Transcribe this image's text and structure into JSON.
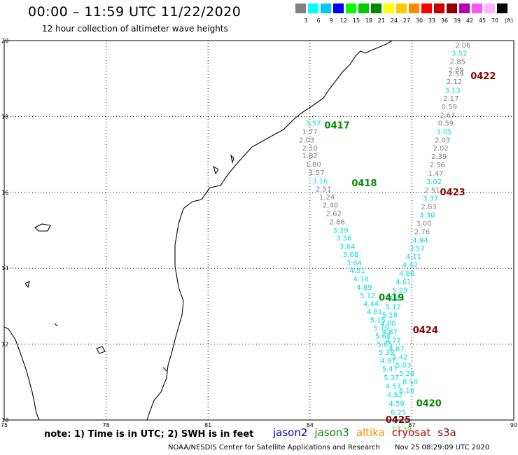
{
  "header": {
    "title": "00:00 – 11:59 UTC 11/22/2020",
    "subtitle": "12 hour collection of altimeter wave heights"
  },
  "color_scale": {
    "unit_label": "(ft)",
    "bins": [
      {
        "label": "3",
        "color": "#808080"
      },
      {
        "label": "6",
        "color": "#00ffff"
      },
      {
        "label": "9",
        "color": "#00c8ff"
      },
      {
        "label": "12",
        "color": "#0000ff"
      },
      {
        "label": "15",
        "color": "#00ff00"
      },
      {
        "label": "18",
        "color": "#00cd00"
      },
      {
        "label": "21",
        "color": "#008c00"
      },
      {
        "label": "24",
        "color": "#ffff00"
      },
      {
        "label": "27",
        "color": "#ffc800"
      },
      {
        "label": "30",
        "color": "#ff8c00"
      },
      {
        "label": "33",
        "color": "#ff0000"
      },
      {
        "label": "36",
        "color": "#cd0000"
      },
      {
        "label": "39",
        "color": "#8b0000"
      },
      {
        "label": "42",
        "color": "#b400b4"
      },
      {
        "label": "45",
        "color": "#ff55ff"
      },
      {
        "label": "70",
        "color": "#ffb4ff"
      },
      {
        "label": "",
        "color": "#000000"
      }
    ]
  },
  "map": {
    "lon_range": [
      75,
      90
    ],
    "lat_range": [
      10,
      20
    ],
    "lon_ticks": [
      "75",
      "78",
      "81",
      "84",
      "87",
      "90"
    ],
    "lat_ticks": [
      "10",
      "12",
      "14",
      "16",
      "18",
      "20"
    ],
    "grid": true
  },
  "tracks": [
    {
      "id": "jason3-left",
      "points": [
        {
          "lon": 84.1,
          "lat": 17.76,
          "value": "3.57",
          "color": "#00dddd"
        },
        {
          "lon": 84.0,
          "lat": 17.54,
          "value": "1.77",
          "color": "#808080"
        },
        {
          "lon": 83.9,
          "lat": 17.32,
          "value": "2.03",
          "color": "#808080"
        },
        {
          "lon": 84.0,
          "lat": 17.1,
          "value": "2.10",
          "color": "#808080"
        },
        {
          "lon": 84.0,
          "lat": 16.9,
          "value": "1.82",
          "color": "#808080"
        },
        {
          "lon": 84.1,
          "lat": 16.68,
          "value": "1.80",
          "color": "#808080"
        },
        {
          "lon": 84.2,
          "lat": 16.46,
          "value": "1.57",
          "color": "#808080"
        },
        {
          "lon": 84.3,
          "lat": 16.24,
          "value": "3.16",
          "color": "#00dddd"
        },
        {
          "lon": 84.4,
          "lat": 16.02,
          "value": "2.51",
          "color": "#808080"
        },
        {
          "lon": 84.5,
          "lat": 15.81,
          "value": "1.24",
          "color": "#808080"
        },
        {
          "lon": 84.6,
          "lat": 15.6,
          "value": "2.40",
          "color": "#808080"
        },
        {
          "lon": 84.7,
          "lat": 15.38,
          "value": "2.62",
          "color": "#808080"
        },
        {
          "lon": 84.8,
          "lat": 15.16,
          "value": "2.86",
          "color": "#808080"
        },
        {
          "lon": 84.9,
          "lat": 14.94,
          "value": "3.29",
          "color": "#00dddd"
        },
        {
          "lon": 85.0,
          "lat": 14.73,
          "value": "3.56",
          "color": "#00dddd"
        },
        {
          "lon": 85.1,
          "lat": 14.51,
          "value": "3.64",
          "color": "#00dddd"
        },
        {
          "lon": 85.2,
          "lat": 14.3,
          "value": "3.68",
          "color": "#00dddd"
        },
        {
          "lon": 85.3,
          "lat": 14.08,
          "value": "3.64",
          "color": "#00dddd"
        },
        {
          "lon": 85.4,
          "lat": 13.87,
          "value": "4.51",
          "color": "#00dddd"
        },
        {
          "lon": 85.5,
          "lat": 13.65,
          "value": "4.18",
          "color": "#00dddd"
        },
        {
          "lon": 85.6,
          "lat": 13.43,
          "value": "4.89",
          "color": "#00dddd"
        },
        {
          "lon": 85.7,
          "lat": 13.22,
          "value": "5.12",
          "color": "#00dddd"
        },
        {
          "lon": 85.8,
          "lat": 13.0,
          "value": "4.44",
          "color": "#00dddd"
        },
        {
          "lon": 85.9,
          "lat": 12.79,
          "value": "4.81",
          "color": "#00dddd"
        },
        {
          "lon": 86.0,
          "lat": 12.57,
          "value": "5.15",
          "color": "#00dddd"
        },
        {
          "lon": 86.1,
          "lat": 12.36,
          "value": "5.19",
          "color": "#00dddd"
        },
        {
          "lon": 86.15,
          "lat": 12.15,
          "value": "5.64",
          "color": "#00dddd"
        },
        {
          "lon": 86.2,
          "lat": 11.94,
          "value": "5.85",
          "color": "#00dddd"
        },
        {
          "lon": 86.25,
          "lat": 11.72,
          "value": "5.39",
          "color": "#00dddd"
        },
        {
          "lon": 86.3,
          "lat": 11.5,
          "value": "4.97",
          "color": "#00dddd"
        },
        {
          "lon": 86.35,
          "lat": 11.28,
          "value": "5.47",
          "color": "#00dddd"
        },
        {
          "lon": 86.4,
          "lat": 11.05,
          "value": "5.37",
          "color": "#00dddd"
        },
        {
          "lon": 86.45,
          "lat": 10.83,
          "value": "4.57",
          "color": "#00dddd"
        },
        {
          "lon": 86.5,
          "lat": 10.6,
          "value": "4.52",
          "color": "#00dddd"
        },
        {
          "lon": 86.55,
          "lat": 10.37,
          "value": "4.59",
          "color": "#00dddd"
        },
        {
          "lon": 86.6,
          "lat": 10.14,
          "value": "6.25",
          "color": "#00dddd"
        },
        {
          "lon": 86.65,
          "lat": 9.92,
          "value": "6.33",
          "color": "#00dddd"
        },
        {
          "lon": 86.7,
          "lat": 9.7,
          "value": "13.39",
          "color": "#55dd55"
        }
      ]
    },
    {
      "id": "right-track",
      "points": [
        {
          "lon": 88.5,
          "lat": 19.82,
          "value": "2.06",
          "color": "#808080"
        },
        {
          "lon": 88.4,
          "lat": 19.6,
          "value": "3.52",
          "color": "#00dddd"
        },
        {
          "lon": 88.35,
          "lat": 19.38,
          "value": "2.85",
          "color": "#808080"
        },
        {
          "lon": 88.3,
          "lat": 19.16,
          "value": "2.89",
          "color": "#808080"
        },
        {
          "lon": 88.3,
          "lat": 19.06,
          "value": "2.59",
          "color": "#808080"
        },
        {
          "lon": 88.25,
          "lat": 18.86,
          "value": "2.12",
          "color": "#808080"
        },
        {
          "lon": 88.2,
          "lat": 18.63,
          "value": "3.13",
          "color": "#00dddd"
        },
        {
          "lon": 88.15,
          "lat": 18.41,
          "value": "2.17",
          "color": "#808080"
        },
        {
          "lon": 88.1,
          "lat": 18.19,
          "value": "0.59",
          "color": "#808080"
        },
        {
          "lon": 88.05,
          "lat": 17.97,
          "value": "2.67",
          "color": "#808080"
        },
        {
          "lon": 88.0,
          "lat": 17.76,
          "value": "0.59",
          "color": "#808080"
        },
        {
          "lon": 87.95,
          "lat": 17.54,
          "value": "3.05",
          "color": "#00dddd"
        },
        {
          "lon": 87.9,
          "lat": 17.32,
          "value": "2.03",
          "color": "#808080"
        },
        {
          "lon": 87.85,
          "lat": 17.1,
          "value": "2.02",
          "color": "#808080"
        },
        {
          "lon": 87.8,
          "lat": 16.88,
          "value": "2.39",
          "color": "#808080"
        },
        {
          "lon": 87.75,
          "lat": 16.66,
          "value": "2.56",
          "color": "#808080"
        },
        {
          "lon": 87.7,
          "lat": 16.44,
          "value": "1.47",
          "color": "#808080"
        },
        {
          "lon": 87.65,
          "lat": 16.22,
          "value": "3.02",
          "color": "#00dddd"
        },
        {
          "lon": 87.6,
          "lat": 16.0,
          "value": "2.51",
          "color": "#808080"
        },
        {
          "lon": 87.55,
          "lat": 15.78,
          "value": "3.37",
          "color": "#00dddd"
        },
        {
          "lon": 87.5,
          "lat": 15.56,
          "value": "2.83",
          "color": "#808080"
        },
        {
          "lon": 87.45,
          "lat": 15.34,
          "value": "3.30",
          "color": "#00dddd"
        },
        {
          "lon": 87.35,
          "lat": 15.12,
          "value": "3.00",
          "color": "#808080"
        },
        {
          "lon": 87.3,
          "lat": 14.9,
          "value": "2.76",
          "color": "#808080"
        },
        {
          "lon": 87.25,
          "lat": 14.68,
          "value": "4.94",
          "color": "#00dddd"
        },
        {
          "lon": 87.15,
          "lat": 14.46,
          "value": "3.57",
          "color": "#00dddd"
        },
        {
          "lon": 87.05,
          "lat": 14.24,
          "value": "4.11",
          "color": "#00dddd"
        },
        {
          "lon": 86.95,
          "lat": 14.02,
          "value": "4.42",
          "color": "#00dddd"
        },
        {
          "lon": 86.85,
          "lat": 13.8,
          "value": "4.80",
          "color": "#00dddd"
        },
        {
          "lon": 86.75,
          "lat": 13.58,
          "value": "4.61",
          "color": "#00dddd"
        },
        {
          "lon": 86.65,
          "lat": 13.36,
          "value": "5.29",
          "color": "#00dddd"
        },
        {
          "lon": 86.55,
          "lat": 13.14,
          "value": "5.44",
          "color": "#00dddd"
        },
        {
          "lon": 86.45,
          "lat": 12.92,
          "value": "5.12",
          "color": "#00dddd"
        },
        {
          "lon": 86.35,
          "lat": 12.7,
          "value": "5.28",
          "color": "#00dddd"
        },
        {
          "lon": 86.3,
          "lat": 12.48,
          "value": "4.80",
          "color": "#00dddd"
        },
        {
          "lon": 86.35,
          "lat": 12.26,
          "value": "4.87",
          "color": "#00dddd"
        },
        {
          "lon": 86.45,
          "lat": 12.04,
          "value": "4.72",
          "color": "#00dddd"
        },
        {
          "lon": 86.55,
          "lat": 11.82,
          "value": "4.87",
          "color": "#00dddd"
        },
        {
          "lon": 86.65,
          "lat": 11.6,
          "value": "5.42",
          "color": "#00dddd"
        },
        {
          "lon": 86.75,
          "lat": 11.38,
          "value": "5.03",
          "color": "#00dddd"
        },
        {
          "lon": 86.85,
          "lat": 11.16,
          "value": "5.28",
          "color": "#00dddd"
        },
        {
          "lon": 86.95,
          "lat": 10.94,
          "value": "8.58",
          "color": "#00dddd"
        },
        {
          "lon": 86.85,
          "lat": 10.72,
          "value": "6.16",
          "color": "#00dddd"
        }
      ]
    }
  ],
  "time_labels": [
    {
      "lon": 84.8,
      "lat": 17.76,
      "text": "0417",
      "color": "#008c00"
    },
    {
      "lon": 85.6,
      "lat": 16.24,
      "text": "0418",
      "color": "#008c00"
    },
    {
      "lon": 86.4,
      "lat": 13.22,
      "text": "0419",
      "color": "#008c00"
    },
    {
      "lon": 87.5,
      "lat": 10.43,
      "text": "0420",
      "color": "#008c00"
    },
    {
      "lon": 89.1,
      "lat": 19.06,
      "text": "0422",
      "color": "#8b0000"
    },
    {
      "lon": 88.2,
      "lat": 16.0,
      "text": "0423",
      "color": "#8b0000"
    },
    {
      "lon": 87.4,
      "lat": 12.36,
      "text": "0424",
      "color": "#8b0000"
    },
    {
      "lon": 86.6,
      "lat": 10.0,
      "text": "0425",
      "color": "#8b0000"
    }
  ],
  "footer": {
    "note": "note: 1) Time is in UTC; 2) SWH is in feet",
    "satellites": [
      {
        "name": "jason2",
        "color": "#0000cd"
      },
      {
        "name": "jason3",
        "color": "#008c00"
      },
      {
        "name": "altika",
        "color": "#ff8c00"
      },
      {
        "name": "cryosat",
        "color": "#cd0000"
      },
      {
        "name": "s3a",
        "color": "#8b0000"
      }
    ],
    "credit": "NOAA/NESDIS Center for Satellite Applications and Research",
    "timestamp": "Nov 25 08:29:09 UTC 2020"
  }
}
